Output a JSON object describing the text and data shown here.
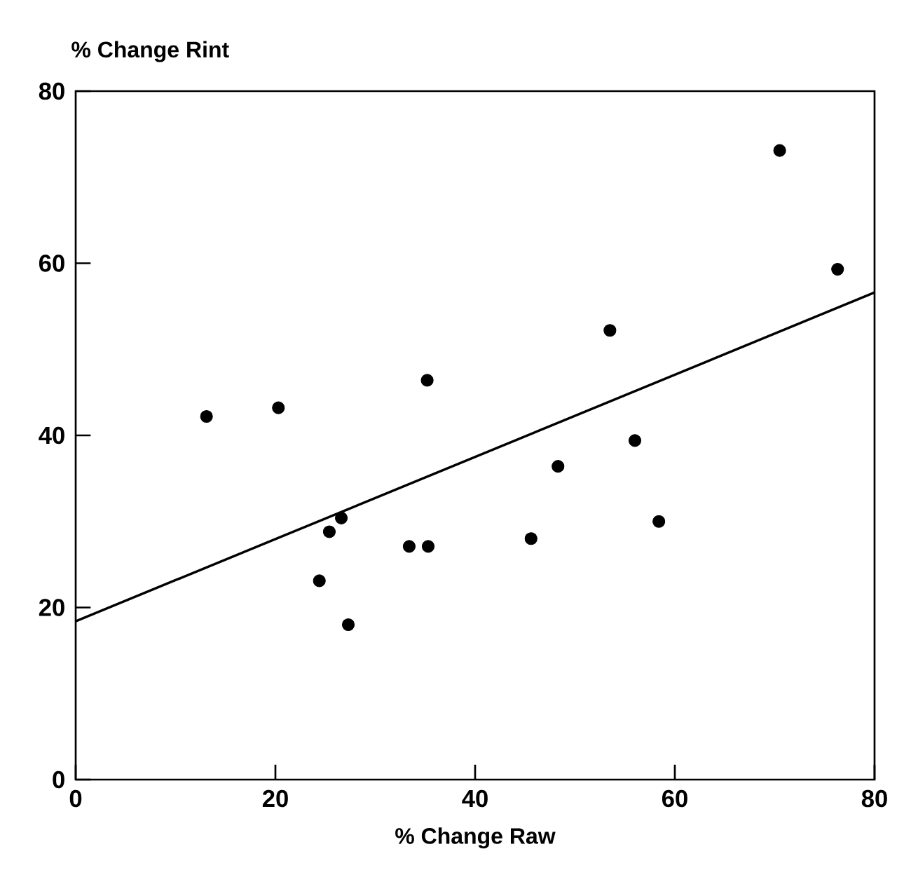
{
  "chart_data": {
    "type": "scatter",
    "xlabel": "% Change Raw",
    "ylabel": "% Change Rint",
    "xlim": [
      0,
      80
    ],
    "ylim": [
      0,
      80
    ],
    "xticks": [
      0,
      20,
      40,
      60,
      80
    ],
    "yticks": [
      0,
      20,
      40,
      60,
      80
    ],
    "grid": false,
    "series": [
      {
        "color": "#000000",
        "marker": "circle",
        "x": [
          13.1,
          20.3,
          26.6,
          25.4,
          33.4,
          35.3,
          24.4,
          27.3,
          35.2,
          70.5,
          76.3,
          53.5,
          56.0,
          48.3,
          58.4,
          45.6
        ],
        "values": [
          42.2,
          43.2,
          30.4,
          28.8,
          27.1,
          27.1,
          23.1,
          18.0,
          46.4,
          73.1,
          59.3,
          52.2,
          39.4,
          36.4,
          30.0,
          28.0
        ]
      },
      {
        "type": "line",
        "color": "#000000",
        "marker": "none",
        "line_style": "solid",
        "x": [
          0,
          80
        ],
        "values": [
          18.4,
          56.6
        ]
      }
    ]
  }
}
